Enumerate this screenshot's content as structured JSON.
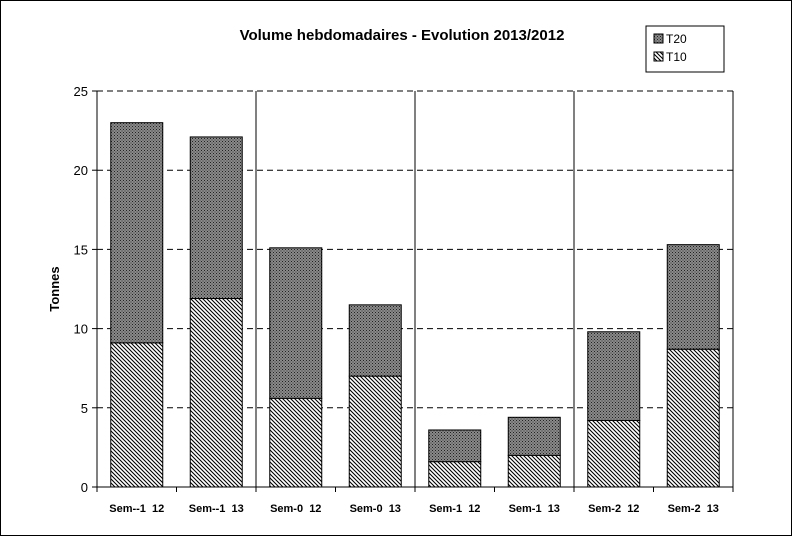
{
  "chart_data": {
    "type": "bar",
    "stacked": true,
    "title": "Volume hebdomadaires  - Evolution 2013/2012",
    "xlabel": "",
    "ylabel": "Tonnes",
    "ylim": [
      0,
      25
    ],
    "yticks": [
      0,
      5,
      10,
      15,
      20,
      25
    ],
    "grid": "horizontal dashed; vertical solid separators between week groups",
    "legend_position": "top-right",
    "categories": [
      "Sem--1  12",
      "Sem--1  13",
      "Sem-0  12",
      "Sem-0  13",
      "Sem-1  12",
      "Sem-1  13",
      "Sem-2  12",
      "Sem-2  13"
    ],
    "series": [
      {
        "name": "T10",
        "pattern": "diagonal-hatch",
        "values": [
          9.1,
          11.9,
          5.6,
          7.0,
          1.6,
          2.0,
          4.2,
          8.7
        ]
      },
      {
        "name": "T20",
        "pattern": "fine-dot-screen",
        "values": [
          13.9,
          10.2,
          9.5,
          4.5,
          2.0,
          2.4,
          5.6,
          6.6
        ]
      }
    ],
    "legend_order": [
      "T20",
      "T10"
    ],
    "colors": {
      "axis": "#000000",
      "grid": "#000000",
      "bar_stroke": "#000000",
      "background": "#ffffff"
    }
  }
}
